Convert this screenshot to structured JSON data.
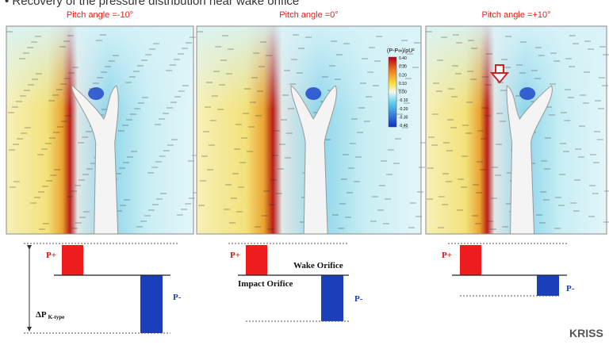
{
  "title": "• Recovery of the pressure distribution near wake orifice",
  "panels": [
    {
      "label": "Pitch angle =-10°"
    },
    {
      "label": "Pitch angle =0°"
    },
    {
      "label": "Pitch angle =+10°"
    }
  ],
  "colorbar": {
    "title": "(P-P∞)/ρU²",
    "ticks": [
      "0.40",
      "0.30",
      "0.20",
      "0.10",
      "0.00",
      "-0.10",
      "-0.20",
      "-0.30",
      "-0.40"
    ]
  },
  "diagrams": [
    {
      "p_plus": "P+",
      "p_minus": "P-",
      "delta": "ΔP",
      "delta_sub": "K-type"
    },
    {
      "p_plus": "P+",
      "p_minus": "P-",
      "wake": "Wake Orifice",
      "impact": "Impact Orifice"
    },
    {
      "p_plus": "P+",
      "p_minus": "P-"
    }
  ],
  "logo": "KRISS"
}
